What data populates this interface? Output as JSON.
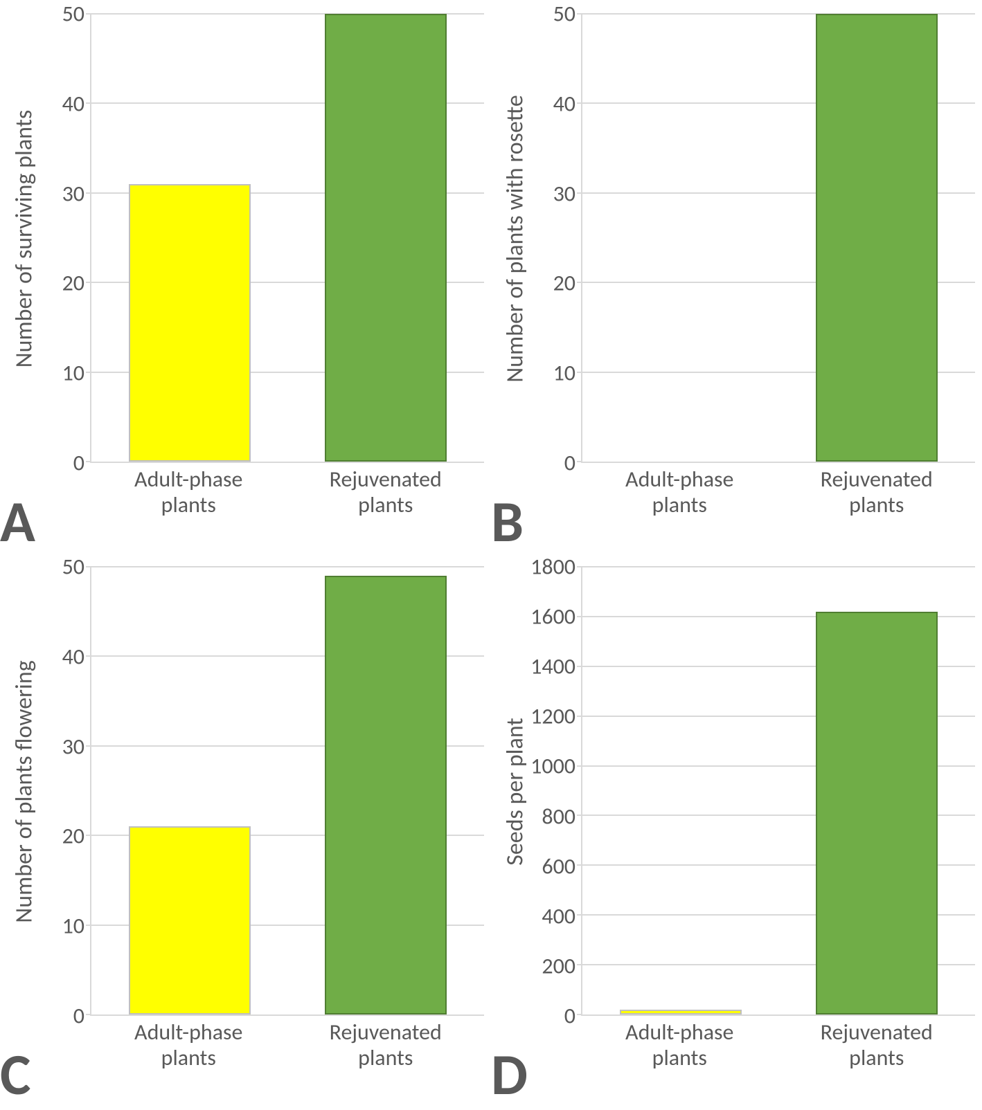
{
  "panels": {
    "A": {
      "type": "bar",
      "letter": "A",
      "ylabel": "Number of surviving plants",
      "categories": [
        "Adult-phase plants",
        "Rejuvenated plants"
      ],
      "values": [
        31,
        50
      ],
      "bar_colors": [
        "#ffff00",
        "#70ad47"
      ],
      "bar_borders": [
        "#bfbfbf",
        "#507e32"
      ],
      "ylim": [
        0,
        50
      ],
      "yticks": [
        0,
        10,
        20,
        30,
        40,
        50
      ],
      "grid_color": "#d9d9d9",
      "tick_color": "#595959",
      "label_fontsize": 34,
      "tick_fontsize": 32,
      "bar_width": 0.62
    },
    "B": {
      "type": "bar",
      "letter": "B",
      "ylabel": "Number of plants with rosette",
      "categories": [
        "Adult-phase plants",
        "Rejuvenated plants"
      ],
      "values": [
        0,
        50
      ],
      "bar_colors": [
        "#ffff00",
        "#70ad47"
      ],
      "bar_borders": [
        "#bfbfbf",
        "#507e32"
      ],
      "ylim": [
        0,
        50
      ],
      "yticks": [
        0,
        10,
        20,
        30,
        40,
        50
      ],
      "grid_color": "#d9d9d9",
      "tick_color": "#595959",
      "label_fontsize": 34,
      "tick_fontsize": 32,
      "bar_width": 0.62
    },
    "C": {
      "type": "bar",
      "letter": "C",
      "ylabel": "Number of plants flowering",
      "categories": [
        "Adult-phase plants",
        "Rejuvenated plants"
      ],
      "values": [
        21,
        49
      ],
      "bar_colors": [
        "#ffff00",
        "#70ad47"
      ],
      "bar_borders": [
        "#bfbfbf",
        "#507e32"
      ],
      "ylim": [
        0,
        50
      ],
      "yticks": [
        0,
        10,
        20,
        30,
        40,
        50
      ],
      "grid_color": "#d9d9d9",
      "tick_color": "#595959",
      "label_fontsize": 34,
      "tick_fontsize": 32,
      "bar_width": 0.62
    },
    "D": {
      "type": "bar",
      "letter": "D",
      "ylabel": "Seeds per plant",
      "categories": [
        "Adult-phase plants",
        "Rejuvenated plants"
      ],
      "values": [
        20,
        1620
      ],
      "bar_colors": [
        "#ffff00",
        "#70ad47"
      ],
      "bar_borders": [
        "#bfbfbf",
        "#507e32"
      ],
      "ylim": [
        0,
        1800
      ],
      "yticks": [
        0,
        200,
        400,
        600,
        800,
        1000,
        1200,
        1400,
        1600,
        1800
      ],
      "grid_color": "#d9d9d9",
      "tick_color": "#595959",
      "label_fontsize": 34,
      "tick_fontsize": 32,
      "bar_width": 0.62
    }
  },
  "panel_order": [
    "A",
    "B",
    "C",
    "D"
  ],
  "background_color": "#ffffff",
  "letter_color": "#595959",
  "letter_fontsize": 84
}
